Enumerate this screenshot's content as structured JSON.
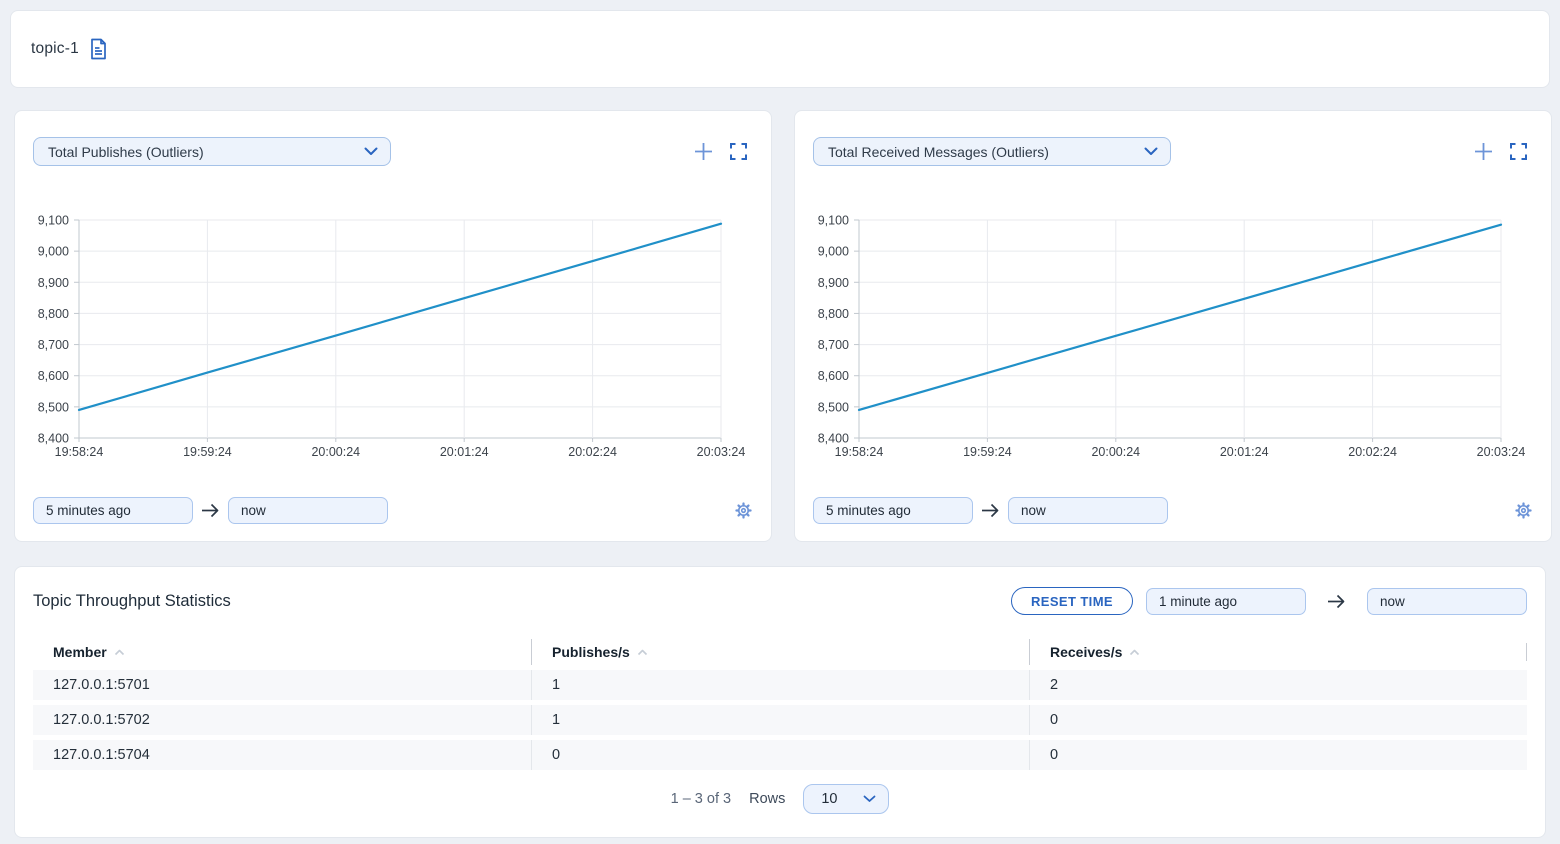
{
  "header": {
    "title": "topic-1"
  },
  "chart_panels": [
    {
      "metric_selector": "Total Publishes (Outliers)",
      "time_from": "5 minutes ago",
      "time_to": "now"
    },
    {
      "metric_selector": "Total Received Messages (Outliers)",
      "time_from": "5 minutes ago",
      "time_to": "now"
    }
  ],
  "chart_data": [
    {
      "type": "line",
      "title": "Total Publishes (Outliers)",
      "x": [
        "19:58:24",
        "19:59:24",
        "20:00:24",
        "20:01:24",
        "20:02:24",
        "20:03:24"
      ],
      "values": [
        8490,
        8610,
        8729,
        8849,
        8968,
        9088
      ],
      "ylim": [
        8400,
        9100
      ],
      "y_step": 100,
      "xlabel": "",
      "ylabel": "",
      "grid": "on",
      "legend": "none",
      "line_color": "#2090c8"
    },
    {
      "type": "line",
      "title": "Total Received Messages (Outliers)",
      "x": [
        "19:58:24",
        "19:59:24",
        "20:00:24",
        "20:01:24",
        "20:02:24",
        "20:03:24"
      ],
      "values": [
        8490,
        8609,
        8728,
        8847,
        8966,
        9085
      ],
      "ylim": [
        8400,
        9100
      ],
      "y_step": 100,
      "xlabel": "",
      "ylabel": "",
      "grid": "on",
      "legend": "none",
      "line_color": "#2090c8"
    }
  ],
  "stats_panel": {
    "title": "Topic Throughput Statistics",
    "reset_time_button": "RESET TIME",
    "time_from": "1 minute ago",
    "time_to": "now",
    "table": {
      "columns": [
        "Member",
        "Publishes/s",
        "Receives/s"
      ],
      "rows": [
        [
          "127.0.0.1:5701",
          "1",
          "2"
        ],
        [
          "127.0.0.1:5702",
          "1",
          "0"
        ],
        [
          "127.0.0.1:5704",
          "0",
          "0"
        ]
      ]
    },
    "pagination": {
      "range_text": "1 – 3 of 3",
      "rows_label": "Rows",
      "rows_per_page": "10"
    }
  },
  "colors": {
    "accent_blue": "#2a65c0",
    "light_blue_icon": "#6d94d8",
    "chart_line": "#2090c8",
    "page_background": "#edf0f5",
    "input_background": "#edf3fd",
    "row_background": "#f7f8fa"
  }
}
